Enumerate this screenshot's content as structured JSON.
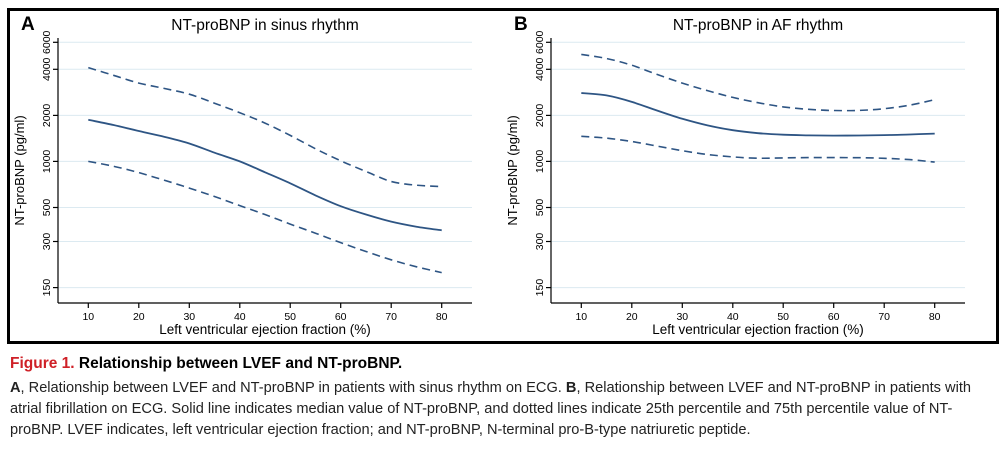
{
  "figure": {
    "panels": [
      {
        "label": "A",
        "title": "NT-proBNP in sinus rhythm"
      },
      {
        "label": "B",
        "title": "NT-proBNP in AF rhythm"
      }
    ]
  },
  "chart_data": [
    {
      "type": "line",
      "panel": "A",
      "title": "NT-proBNP in sinus rhythm",
      "xlabel": "Left ventricular ejection fraction (%)",
      "ylabel": "NT-proBNP (pg/ml)",
      "y_scale": "log",
      "grid": "horizontal",
      "legend": "none",
      "xlim": [
        4,
        86
      ],
      "ylim": [
        119,
        6400
      ],
      "x_ticks": [
        10,
        20,
        30,
        40,
        50,
        60,
        70,
        80
      ],
      "y_ticks": [
        150,
        300,
        500,
        1000,
        2000,
        4000,
        6000
      ],
      "x": [
        10,
        15,
        20,
        25,
        30,
        35,
        40,
        45,
        50,
        55,
        60,
        65,
        70,
        75,
        80
      ],
      "series": [
        {
          "name": "Median NT-proBNP",
          "style": "solid",
          "values": [
            1870,
            1730,
            1580,
            1450,
            1310,
            1140,
            1000,
            850,
            720,
            600,
            510,
            450,
            405,
            375,
            355
          ]
        },
        {
          "name": "75th percentile",
          "style": "dashed",
          "values": [
            4100,
            3650,
            3250,
            3000,
            2750,
            2400,
            2080,
            1780,
            1480,
            1210,
            1010,
            860,
            740,
            700,
            685
          ]
        },
        {
          "name": "25th percentile",
          "style": "dashed",
          "values": [
            1000,
            930,
            845,
            755,
            670,
            590,
            515,
            450,
            390,
            340,
            295,
            258,
            228,
            205,
            188
          ]
        }
      ]
    },
    {
      "type": "line",
      "panel": "B",
      "title": "NT-proBNP in AF rhythm",
      "xlabel": "Left ventricular ejection fraction (%)",
      "ylabel": "NT-proBNP (pg/ml)",
      "y_scale": "log",
      "grid": "horizontal",
      "legend": "none",
      "xlim": [
        4,
        86
      ],
      "ylim": [
        119,
        6400
      ],
      "x_ticks": [
        10,
        20,
        30,
        40,
        50,
        60,
        70,
        80
      ],
      "y_ticks": [
        150,
        300,
        500,
        1000,
        2000,
        4000,
        6000
      ],
      "x": [
        10,
        15,
        20,
        25,
        30,
        35,
        40,
        45,
        50,
        55,
        60,
        65,
        70,
        75,
        80
      ],
      "series": [
        {
          "name": "Median NT-proBNP",
          "style": "solid",
          "values": [
            2800,
            2700,
            2450,
            2150,
            1900,
            1720,
            1600,
            1530,
            1495,
            1480,
            1475,
            1478,
            1485,
            1500,
            1520
          ]
        },
        {
          "name": "75th percentile",
          "style": "dashed",
          "values": [
            5000,
            4700,
            4250,
            3700,
            3250,
            2900,
            2620,
            2420,
            2270,
            2190,
            2150,
            2155,
            2210,
            2330,
            2530
          ]
        },
        {
          "name": "25th percentile",
          "style": "dashed",
          "values": [
            1460,
            1420,
            1350,
            1260,
            1175,
            1110,
            1070,
            1050,
            1055,
            1060,
            1060,
            1058,
            1048,
            1028,
            990
          ]
        }
      ]
    }
  ],
  "caption": {
    "label": "Figure 1.",
    "heading": " Relationship between LVEF and NT-proBNP.",
    "body_segments": [
      {
        "text": "A",
        "bold": true
      },
      {
        "text": ", Relationship between LVEF and NT-proBNP in patients with sinus rhythm on ECG. ",
        "bold": false
      },
      {
        "text": "B",
        "bold": true
      },
      {
        "text": ", Relationship between LVEF and NT-proBNP in patients with atrial fibrillation on ECG. Solid line indicates median value of NT-proBNP, and dotted lines indicate 25th percentile and 75th percentile value of NT-proBNP. LVEF indicates, left ventricular ejection fraction; and NT-proBNP, N-terminal pro-B-type natriuretic peptide.",
        "bold": false
      }
    ]
  },
  "colors": {
    "line": "#2e5584",
    "grid": "#dceaf1",
    "axis": "#000000",
    "caption_label": "#cf2027"
  }
}
